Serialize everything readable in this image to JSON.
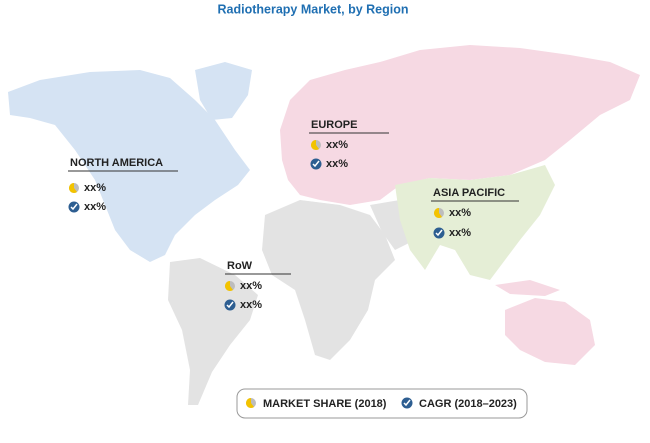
{
  "title": "Radiotherapy Market, by Region",
  "regions": [
    {
      "name": "NORTH AMERICA",
      "market_share": "xx%",
      "cagr": "xx%"
    },
    {
      "name": "EUROPE",
      "market_share": "xx%",
      "cagr": "xx%"
    },
    {
      "name": "ASIA PACIFIC",
      "market_share": "xx%",
      "cagr": "xx%"
    },
    {
      "name": "RoW",
      "market_share": "xx%",
      "cagr": "xx%"
    }
  ],
  "legend": [
    {
      "label": "MARKET SHARE (2018)"
    },
    {
      "label": "CAGR (2018–2023)"
    }
  ]
}
